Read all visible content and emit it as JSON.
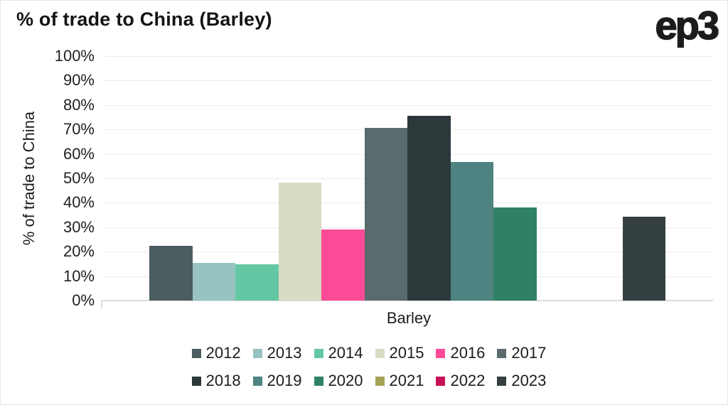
{
  "branding": {
    "logo_text": "ep3"
  },
  "style_colors": {
    "background": "#ffffff",
    "frame_border": "#e6e6e6",
    "grid": "#ececec",
    "axis": "#dcdcdc",
    "text": "#1d1d1d"
  },
  "chart_data": {
    "type": "bar",
    "title": "% of trade to China (Barley)",
    "xlabel": "Barley",
    "ylabel": "% of trade to China",
    "categories": [
      "Barley"
    ],
    "series": [
      {
        "name": "2012",
        "values": [
          22.4
        ],
        "color": "#4b5d5f"
      },
      {
        "name": "2013",
        "values": [
          15.3
        ],
        "color": "#97c3c1"
      },
      {
        "name": "2014",
        "values": [
          14.7
        ],
        "color": "#64c7a3"
      },
      {
        "name": "2015",
        "values": [
          48.4
        ],
        "color": "#d9dbc3"
      },
      {
        "name": "2016",
        "values": [
          29.2
        ],
        "color": "#fd4b97"
      },
      {
        "name": "2017",
        "values": [
          70.5
        ],
        "color": "#5a6b6e"
      },
      {
        "name": "2018",
        "values": [
          75.7
        ],
        "color": "#2d383b"
      },
      {
        "name": "2019",
        "values": [
          56.7
        ],
        "color": "#4e8381"
      },
      {
        "name": "2020",
        "values": [
          38.1
        ],
        "color": "#2f8165"
      },
      {
        "name": "2021",
        "values": [
          0
        ],
        "color": "#a4a457"
      },
      {
        "name": "2022",
        "values": [
          0
        ],
        "color": "#c50f57"
      },
      {
        "name": "2023",
        "values": [
          34.3
        ],
        "color": "#343f42"
      }
    ],
    "ylim": [
      0,
      100
    ],
    "yticks": [
      {
        "value": 0,
        "label": "0%"
      },
      {
        "value": 10,
        "label": "10%"
      },
      {
        "value": 20,
        "label": "20%"
      },
      {
        "value": 30,
        "label": "30%"
      },
      {
        "value": 40,
        "label": "40%"
      },
      {
        "value": 50,
        "label": "50%"
      },
      {
        "value": 60,
        "label": "60%"
      },
      {
        "value": 70,
        "label": "70%"
      },
      {
        "value": 80,
        "label": "80%"
      },
      {
        "value": 90,
        "label": "90%"
      },
      {
        "value": 100,
        "label": "100%"
      }
    ],
    "grid": true,
    "legend_position": "bottom",
    "legend_rows": [
      [
        "2012",
        "2013",
        "2014",
        "2015",
        "2016",
        "2017"
      ],
      [
        "2018",
        "2019",
        "2020",
        "2021",
        "2022",
        "2023"
      ]
    ]
  }
}
